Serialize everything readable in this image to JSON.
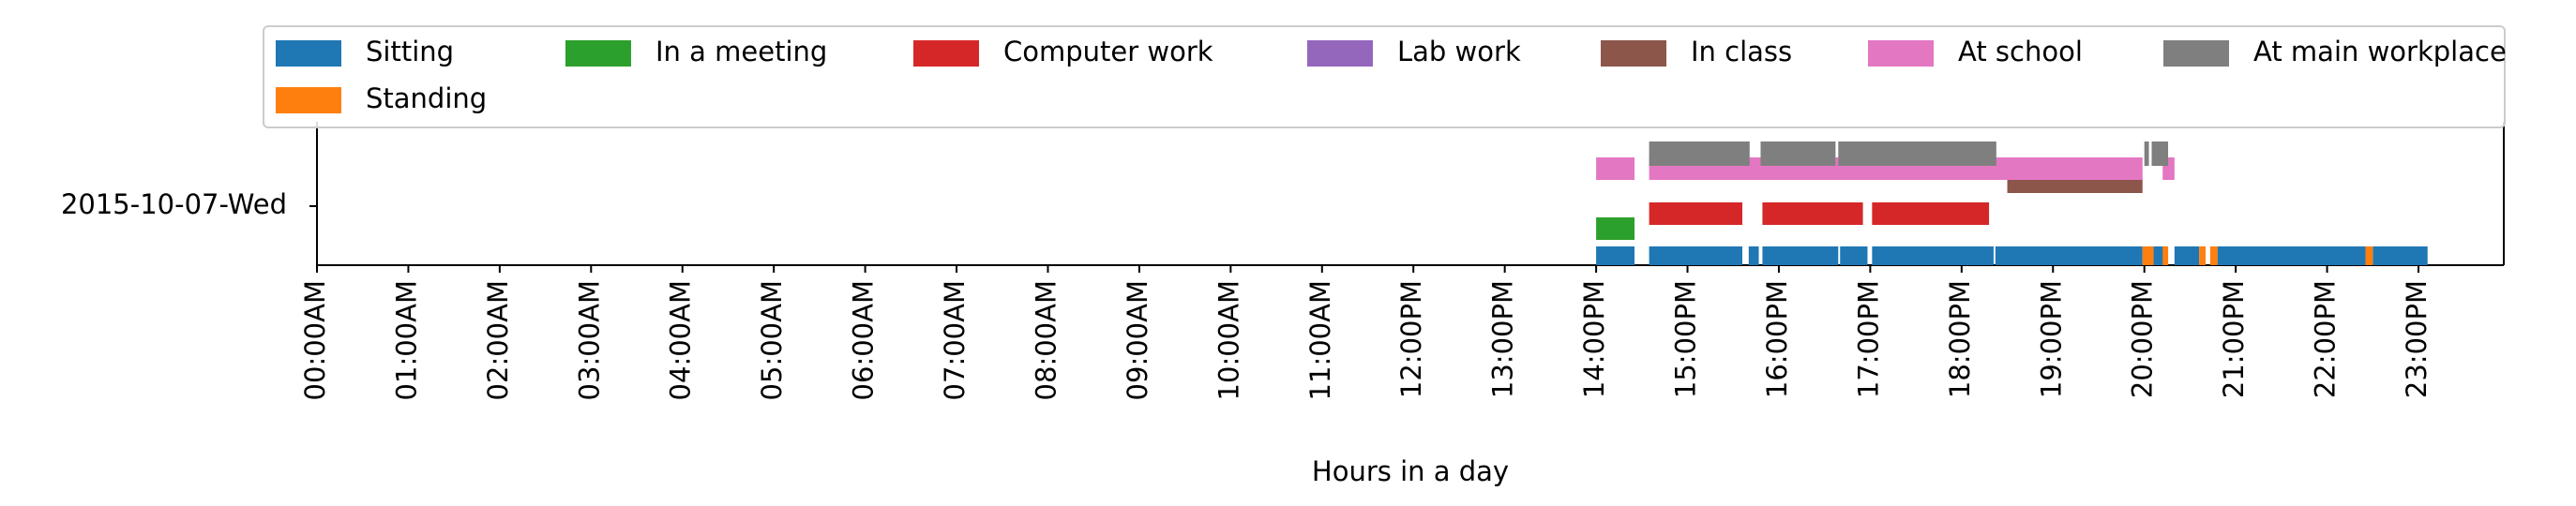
{
  "chart_data": {
    "type": "timeline",
    "date_label": "2015-10-07-Wed",
    "xlabel": "Hours in a day",
    "xlim": [
      0,
      24
    ],
    "x_ticks": [
      "00:00AM",
      "01:00AM",
      "02:00AM",
      "03:00AM",
      "04:00AM",
      "05:00AM",
      "06:00AM",
      "07:00AM",
      "08:00AM",
      "09:00AM",
      "10:00AM",
      "11:00AM",
      "12:00PM",
      "13:00PM",
      "14:00PM",
      "15:00PM",
      "16:00PM",
      "17:00PM",
      "18:00PM",
      "19:00PM",
      "20:00PM",
      "21:00PM",
      "22:00PM",
      "23:00PM"
    ],
    "legend_position": "top",
    "series": [
      {
        "name": "Sitting",
        "color": "#1f77b4",
        "lane": 0,
        "intervals": [
          [
            14.0,
            14.42
          ],
          [
            14.58,
            15.6
          ],
          [
            15.67,
            15.78
          ],
          [
            15.82,
            16.65
          ],
          [
            16.67,
            16.97
          ],
          [
            17.02,
            18.35
          ],
          [
            18.37,
            19.98
          ],
          [
            20.1,
            20.26
          ],
          [
            20.33,
            20.6
          ],
          [
            20.8,
            22.42
          ],
          [
            22.5,
            23.1
          ]
        ]
      },
      {
        "name": "Standing",
        "color": "#ff7f0e",
        "lane": 0,
        "intervals": [
          [
            19.98,
            20.1
          ],
          [
            20.2,
            20.26
          ],
          [
            20.6,
            20.67
          ],
          [
            20.72,
            20.8
          ],
          [
            22.42,
            22.5
          ]
        ]
      },
      {
        "name": "In a meeting",
        "color": "#2ca02c",
        "lane": 1,
        "intervals": [
          [
            14.0,
            14.42
          ]
        ]
      },
      {
        "name": "Computer work",
        "color": "#d62728",
        "lane": 2,
        "intervals": [
          [
            14.58,
            15.6
          ],
          [
            15.82,
            16.92
          ],
          [
            17.02,
            18.3
          ]
        ]
      },
      {
        "name": "Lab work",
        "color": "#9467bd",
        "lane": 3,
        "intervals": []
      },
      {
        "name": "In class",
        "color": "#8c564b",
        "lane": 3,
        "intervals": [
          [
            18.5,
            19.98
          ]
        ]
      },
      {
        "name": "At school",
        "color": "#e377c2",
        "lane": 4,
        "intervals": [
          [
            14.0,
            14.42
          ],
          [
            14.58,
            19.98
          ],
          [
            20.2,
            20.33
          ]
        ]
      },
      {
        "name": "At main workplace",
        "color": "#7f7f7f",
        "lane": 5,
        "intervals": [
          [
            14.58,
            15.68
          ],
          [
            15.8,
            16.62
          ],
          [
            16.65,
            18.38
          ],
          [
            20.0,
            20.05
          ],
          [
            20.08,
            20.26
          ]
        ]
      }
    ]
  }
}
